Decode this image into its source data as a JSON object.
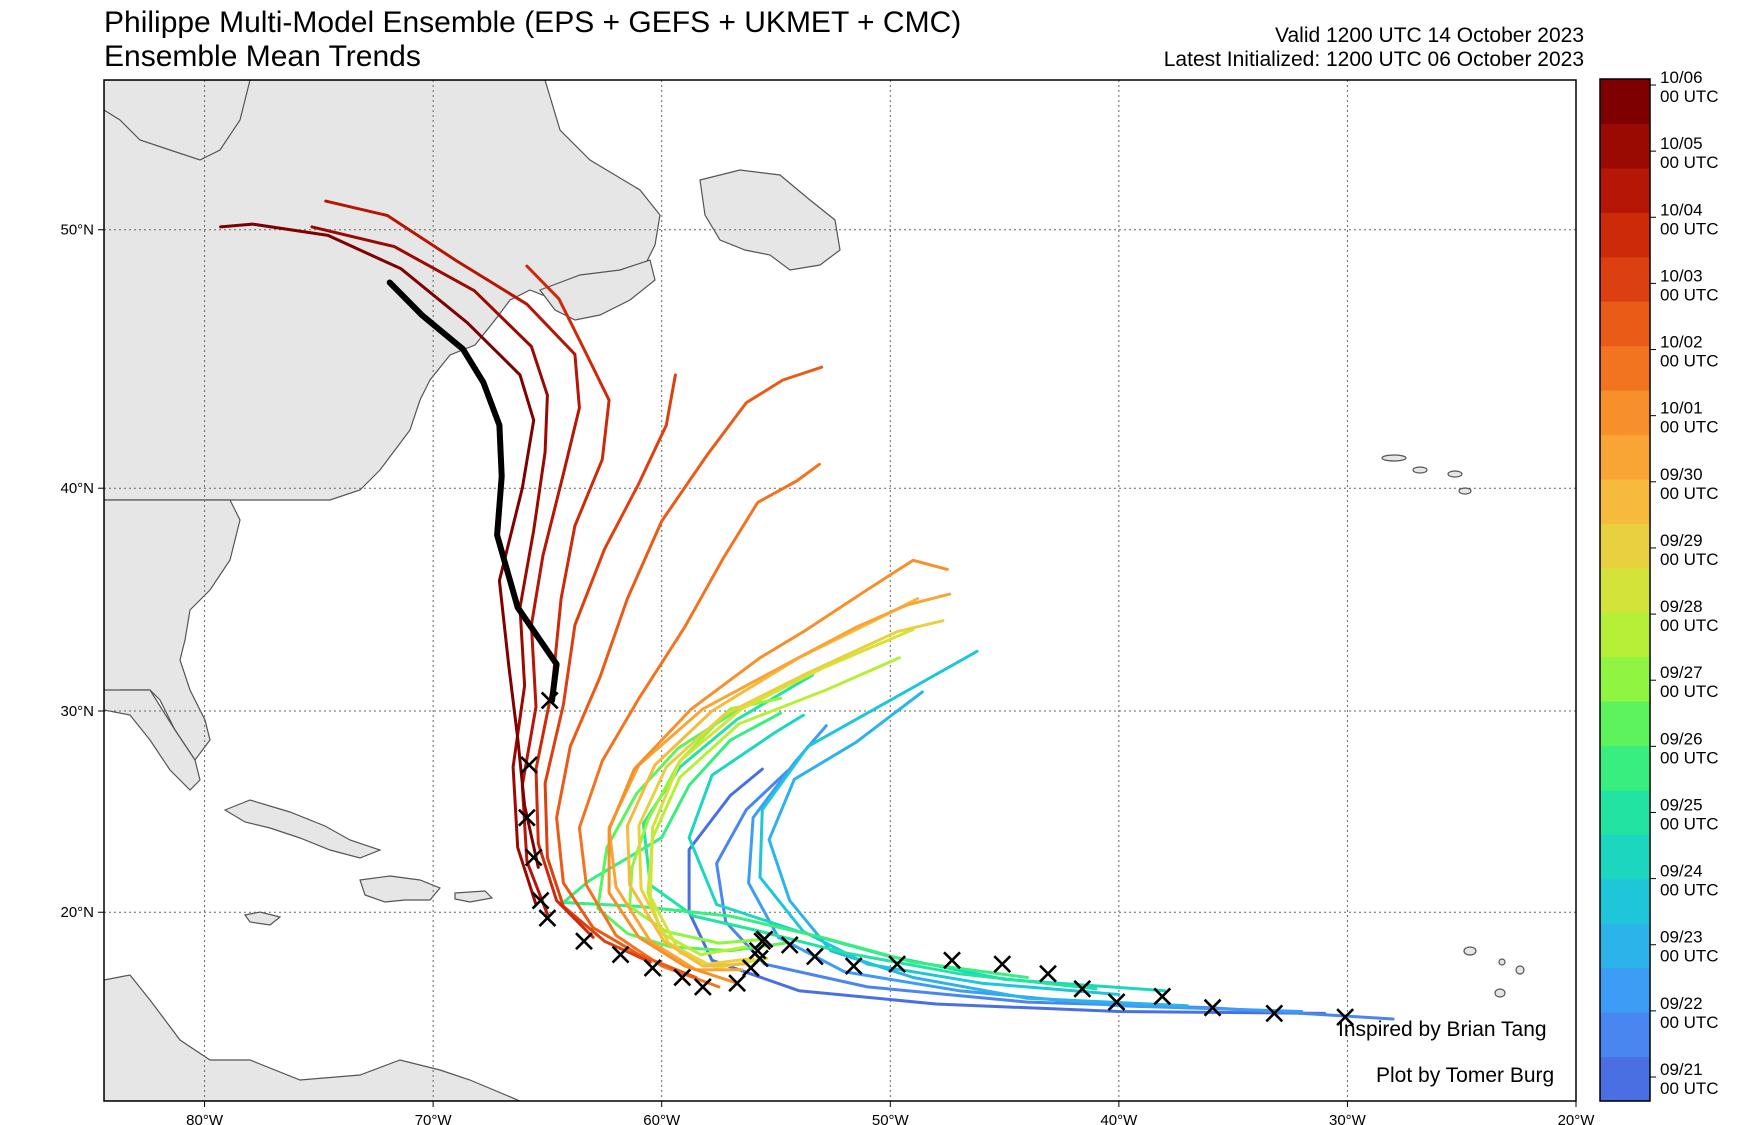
{
  "title": {
    "line1": "Philippe Multi-Model Ensemble (EPS + GEFS + UKMET + CMC)",
    "line2": "Ensemble Mean Trends",
    "valid": "Valid 1200 UTC 14 October 2023",
    "initialized": "Latest Initialized: 1200 UTC 06 October 2023"
  },
  "credits": {
    "inspired": "Inspired by Brian Tang",
    "plot_by": "Plot by Tomer Burg"
  },
  "map": {
    "lon_ticks": [
      {
        "value": -80,
        "label": "80°W"
      },
      {
        "value": -70,
        "label": "70°W"
      },
      {
        "value": -60,
        "label": "60°W"
      },
      {
        "value": -50,
        "label": "50°W"
      },
      {
        "value": -40,
        "label": "40°W"
      },
      {
        "value": -30,
        "label": "30°W"
      },
      {
        "value": -20,
        "label": "20°W"
      }
    ],
    "lat_ticks": [
      {
        "value": 20,
        "label": "20°N"
      },
      {
        "value": 30,
        "label": "30°N"
      },
      {
        "value": 40,
        "label": "40°N"
      },
      {
        "value": 50,
        "label": "50°N"
      }
    ],
    "lon_range": [
      -84.4,
      -20
    ],
    "lat_range": [
      10,
      55
    ],
    "grid": true,
    "land_color": "#e6e6e6",
    "border_color": "#555555",
    "mean_track_color": "#000000",
    "marker": "x-marker-icon"
  },
  "colorbar": {
    "colors": [
      "#4a6fe3",
      "#4a86f0",
      "#3d9cf5",
      "#2cb3e9",
      "#1fc6d9",
      "#1cd6c0",
      "#22e3a2",
      "#38ee7f",
      "#5df35c",
      "#8ff540",
      "#b6ef38",
      "#d4e33a",
      "#e9d03e",
      "#f6bb3d",
      "#f9a535",
      "#f78f2b",
      "#f27421",
      "#ea5b18",
      "#dd4010",
      "#cc2a09",
      "#b51605",
      "#9a0a02",
      "#7e0000"
    ],
    "labels": [
      {
        "date": "09/21",
        "time": "00 UTC"
      },
      {
        "date": "09/22",
        "time": "00 UTC"
      },
      {
        "date": "09/23",
        "time": "00 UTC"
      },
      {
        "date": "09/24",
        "time": "00 UTC"
      },
      {
        "date": "09/25",
        "time": "00 UTC"
      },
      {
        "date": "09/26",
        "time": "00 UTC"
      },
      {
        "date": "09/27",
        "time": "00 UTC"
      },
      {
        "date": "09/28",
        "time": "00 UTC"
      },
      {
        "date": "09/29",
        "time": "00 UTC"
      },
      {
        "date": "09/30",
        "time": "00 UTC"
      },
      {
        "date": "10/01",
        "time": "00 UTC"
      },
      {
        "date": "10/02",
        "time": "00 UTC"
      },
      {
        "date": "10/03",
        "time": "00 UTC"
      },
      {
        "date": "10/04",
        "time": "00 UTC"
      },
      {
        "date": "10/05",
        "time": "00 UTC"
      },
      {
        "date": "10/06",
        "time": "00 UTC"
      }
    ]
  },
  "tracks": [
    {
      "color": "#4a6fe3",
      "points": [
        [
          -31,
          14.7
        ],
        [
          -40,
          14.8
        ],
        [
          -48,
          15.2
        ],
        [
          -54,
          15.9
        ],
        [
          -57.8,
          17.5
        ],
        [
          -58.8,
          20
        ],
        [
          -58.8,
          23.2
        ],
        [
          -57,
          25.9
        ],
        [
          -55.6,
          27.2
        ]
      ]
    },
    {
      "color": "#4a86f0",
      "points": [
        [
          -28,
          14.4
        ],
        [
          -36,
          15
        ],
        [
          -44,
          15.3
        ],
        [
          -51,
          16.1
        ],
        [
          -55.5,
          17.3
        ],
        [
          -57.2,
          19.5
        ],
        [
          -57.6,
          22.5
        ],
        [
          -56.3,
          25.2
        ],
        [
          -54.5,
          27.1
        ]
      ]
    },
    {
      "color": "#3d9cf5",
      "points": [
        [
          -32,
          14.8
        ],
        [
          -40,
          15.1
        ],
        [
          -47,
          15.9
        ],
        [
          -52,
          16.9
        ],
        [
          -54.9,
          18.7
        ],
        [
          -56.2,
          21.5
        ],
        [
          -56,
          24.8
        ],
        [
          -54.2,
          27.5
        ],
        [
          -52.8,
          29.3
        ]
      ]
    },
    {
      "color": "#2cb3e9",
      "points": [
        [
          -37,
          15.1
        ],
        [
          -44,
          15.5
        ],
        [
          -49,
          16.6
        ],
        [
          -52.6,
          18
        ],
        [
          -54.4,
          20.6
        ],
        [
          -55.3,
          23.7
        ],
        [
          -54.2,
          26.7
        ],
        [
          -51.5,
          28.5
        ],
        [
          -48.6,
          30.9
        ]
      ]
    },
    {
      "color": "#1fc6d9",
      "points": [
        [
          -40,
          15.7
        ],
        [
          -46,
          16.3
        ],
        [
          -51,
          17.3
        ],
        [
          -53.8,
          19
        ],
        [
          -55.7,
          21.8
        ],
        [
          -55.6,
          25.2
        ],
        [
          -53.6,
          28.3
        ],
        [
          -49.2,
          31
        ],
        [
          -46.2,
          32.8
        ]
      ]
    },
    {
      "color": "#1cd6c0",
      "points": [
        [
          -38,
          15.9
        ],
        [
          -45,
          16.5
        ],
        [
          -50,
          17.7
        ],
        [
          -54,
          19
        ],
        [
          -57.6,
          20.4
        ],
        [
          -58.8,
          23.8
        ],
        [
          -57.8,
          26.9
        ],
        [
          -55,
          29
        ],
        [
          -53.8,
          29.8
        ]
      ]
    },
    {
      "color": "#22e3a2",
      "points": [
        [
          -41,
          16
        ],
        [
          -47,
          16.8
        ],
        [
          -52,
          17.9
        ],
        [
          -56,
          19.1
        ],
        [
          -58.6,
          19.8
        ],
        [
          -60.5,
          21.4
        ],
        [
          -60.8,
          24.5
        ],
        [
          -59.2,
          27.3
        ],
        [
          -56.7,
          29.6
        ],
        [
          -53.4,
          31.7
        ]
      ]
    },
    {
      "color": "#38ee7f",
      "points": [
        [
          -44,
          16.6
        ],
        [
          -49,
          17.4
        ],
        [
          -53,
          18.7
        ],
        [
          -57,
          19.8
        ],
        [
          -61,
          20.3
        ],
        [
          -64.3,
          20.5
        ],
        [
          -63.2,
          21.6
        ],
        [
          -60,
          23.8
        ],
        [
          -58.8,
          26.4
        ],
        [
          -57,
          28.6
        ],
        [
          -54.8,
          29.9
        ]
      ]
    },
    {
      "color": "#5df35c",
      "points": [
        [
          -54.6,
          18.4
        ],
        [
          -57,
          18
        ],
        [
          -59.6,
          18.2
        ],
        [
          -61.5,
          18.9
        ],
        [
          -62.8,
          20.2
        ],
        [
          -62.4,
          23.3
        ],
        [
          -61.1,
          26
        ],
        [
          -59.3,
          28.2
        ],
        [
          -56.6,
          30.1
        ]
      ]
    },
    {
      "color": "#8ff540",
      "points": [
        [
          -55.5,
          18.6
        ],
        [
          -57.5,
          18.4
        ],
        [
          -59.8,
          19
        ],
        [
          -61.4,
          20.3
        ],
        [
          -61.3,
          22.3
        ],
        [
          -60.6,
          24.7
        ],
        [
          -59.2,
          27.6
        ],
        [
          -57,
          30.1
        ],
        [
          -54.8,
          30.6
        ]
      ]
    },
    {
      "color": "#b6ef38",
      "points": [
        [
          -56.3,
          18.2
        ],
        [
          -58.3,
          17.8
        ],
        [
          -60,
          18.9
        ],
        [
          -60.6,
          21
        ],
        [
          -60.4,
          23.8
        ],
        [
          -59.2,
          26.8
        ],
        [
          -56.6,
          29.4
        ],
        [
          -52.8,
          31
        ],
        [
          -49.6,
          32.5
        ]
      ]
    },
    {
      "color": "#d4e33a",
      "points": [
        [
          -55.4,
          17.6
        ],
        [
          -57.6,
          17.1
        ],
        [
          -59.2,
          17.9
        ],
        [
          -60.5,
          20.8
        ],
        [
          -60.4,
          24.3
        ],
        [
          -59.2,
          27.6
        ],
        [
          -56.5,
          30.1
        ],
        [
          -53,
          32
        ],
        [
          -49,
          33.8
        ]
      ]
    },
    {
      "color": "#e9d03e",
      "points": [
        [
          -56,
          17.6
        ],
        [
          -58,
          17.3
        ],
        [
          -59.7,
          18.4
        ],
        [
          -60.9,
          21.2
        ],
        [
          -61,
          24.4
        ],
        [
          -59.8,
          27.3
        ],
        [
          -57.3,
          29.8
        ],
        [
          -53.6,
          31.8
        ],
        [
          -49.7,
          33.7
        ],
        [
          -47.7,
          34.2
        ]
      ]
    },
    {
      "color": "#f6bb3d",
      "points": [
        [
          -56.4,
          17.3
        ],
        [
          -58.2,
          17.2
        ],
        [
          -59.9,
          18.5
        ],
        [
          -61.4,
          21.4
        ],
        [
          -61.5,
          24.4
        ],
        [
          -60.3,
          27.4
        ],
        [
          -57.8,
          30
        ],
        [
          -54,
          32.5
        ],
        [
          -50.7,
          34.2
        ],
        [
          -48.8,
          35.2
        ]
      ]
    },
    {
      "color": "#f9a535",
      "points": [
        [
          -56.5,
          17
        ],
        [
          -58.5,
          17
        ],
        [
          -60.5,
          18.5
        ],
        [
          -62,
          21.3
        ],
        [
          -62.3,
          24.3
        ],
        [
          -61,
          27.4
        ],
        [
          -58.2,
          30.1
        ],
        [
          -54.2,
          32.4
        ],
        [
          -51.5,
          33.9
        ],
        [
          -49.3,
          34.9
        ],
        [
          -47.4,
          35.4
        ]
      ]
    },
    {
      "color": "#f78f2b",
      "points": [
        [
          -56.7,
          16.3
        ],
        [
          -59,
          17.2
        ],
        [
          -61,
          18.7
        ],
        [
          -62.3,
          21
        ],
        [
          -62.3,
          24.2
        ],
        [
          -61.2,
          27.2
        ],
        [
          -58.7,
          30.1
        ],
        [
          -55.7,
          32.5
        ],
        [
          -53.8,
          33.7
        ],
        [
          -51,
          35.6
        ],
        [
          -49,
          36.9
        ],
        [
          -47.5,
          36.5
        ]
      ]
    },
    {
      "color": "#f27421",
      "points": [
        [
          -57.5,
          16.1
        ],
        [
          -60,
          17.2
        ],
        [
          -62,
          18.8
        ],
        [
          -63.3,
          21.4
        ],
        [
          -63.6,
          24.3
        ],
        [
          -62.6,
          27.6
        ],
        [
          -61,
          30.6
        ],
        [
          -59,
          33.9
        ],
        [
          -57.3,
          37
        ],
        [
          -55.8,
          39.4
        ],
        [
          -54.1,
          40.3
        ],
        [
          -53.1,
          41
        ]
      ]
    },
    {
      "color": "#ea5b18",
      "points": [
        [
          -58.5,
          16.6
        ],
        [
          -61,
          17.8
        ],
        [
          -63,
          19.2
        ],
        [
          -64.3,
          21.5
        ],
        [
          -64.6,
          24.8
        ],
        [
          -64,
          28.3
        ],
        [
          -62.7,
          31.6
        ],
        [
          -61.5,
          35.2
        ],
        [
          -60,
          38.6
        ],
        [
          -58,
          41.4
        ],
        [
          -56.3,
          43.5
        ],
        [
          -54.7,
          44.4
        ],
        [
          -53,
          44.9
        ]
      ]
    },
    {
      "color": "#dd4010",
      "points": [
        [
          -60.5,
          17.4
        ],
        [
          -62.5,
          18.5
        ],
        [
          -64.3,
          20.3
        ],
        [
          -65,
          22.8
        ],
        [
          -65.1,
          26.5
        ],
        [
          -64.3,
          30.3
        ],
        [
          -63.8,
          34
        ],
        [
          -62.5,
          37.4
        ],
        [
          -61,
          40.2
        ],
        [
          -59.8,
          42.6
        ],
        [
          -59.4,
          44.6
        ]
      ]
    },
    {
      "color": "#cc2a09",
      "points": [
        [
          -63,
          18.7
        ],
        [
          -64.6,
          20.6
        ],
        [
          -65.4,
          23.5
        ],
        [
          -65.5,
          27.2
        ],
        [
          -64.8,
          31
        ],
        [
          -64.4,
          35.2
        ],
        [
          -63.8,
          38.4
        ],
        [
          -62.6,
          41.2
        ],
        [
          -62.3,
          43.6
        ],
        [
          -63.4,
          45.6
        ],
        [
          -64.5,
          47.5
        ],
        [
          -65.9,
          48.7
        ]
      ]
    },
    {
      "color": "#b51605",
      "points": [
        [
          -65,
          19.9
        ],
        [
          -65.9,
          22.6
        ],
        [
          -66.1,
          26.4
        ],
        [
          -65.5,
          30.2
        ],
        [
          -65.7,
          34
        ],
        [
          -65.2,
          37.1
        ],
        [
          -64.3,
          40.6
        ],
        [
          -63.6,
          43.3
        ],
        [
          -63.8,
          45.4
        ],
        [
          -65.9,
          47.3
        ],
        [
          -69,
          48.9
        ],
        [
          -72,
          50.5
        ],
        [
          -74.7,
          51
        ]
      ]
    },
    {
      "color": "#9a0a02",
      "points": [
        [
          -65.5,
          20.4
        ],
        [
          -66.3,
          23.3
        ],
        [
          -66.5,
          27.3
        ],
        [
          -66,
          31.2
        ],
        [
          -66.2,
          34.8
        ],
        [
          -65.6,
          38.2
        ],
        [
          -65.1,
          41.5
        ],
        [
          -65,
          43.8
        ],
        [
          -65.7,
          45.7
        ],
        [
          -68.2,
          47.8
        ],
        [
          -71.7,
          49.4
        ],
        [
          -75.3,
          50.1
        ]
      ]
    },
    {
      "color": "#7e0000",
      "points": [
        [
          -65.4,
          22.3
        ],
        [
          -66,
          25.4
        ],
        [
          -66.3,
          28.7
        ],
        [
          -66.7,
          32.2
        ],
        [
          -67.1,
          36
        ],
        [
          -66.1,
          40
        ],
        [
          -65.6,
          42.8
        ],
        [
          -66.2,
          44.6
        ],
        [
          -68.5,
          46.6
        ],
        [
          -71.4,
          48.6
        ],
        [
          -74.6,
          49.8
        ],
        [
          -77.9,
          50.2
        ],
        [
          -79.3,
          50.1
        ]
      ]
    },
    {
      "color": "#000000",
      "points": [
        [
          -64.8,
          30.5
        ],
        [
          -64.6,
          32.2
        ],
        [
          -66.3,
          34.8
        ],
        [
          -67.2,
          38
        ],
        [
          -67,
          40.5
        ],
        [
          -67.1,
          42.6
        ],
        [
          -67.8,
          44.3
        ],
        [
          -68.7,
          45.6
        ],
        [
          -70.5,
          46.9
        ],
        [
          -71.9,
          48.1
        ]
      ],
      "width": 6
    }
  ],
  "markers": [
    [
      -30.1,
      14.5
    ],
    [
      -33.2,
      14.7
    ],
    [
      -35.9,
      15
    ],
    [
      -38.1,
      15.6
    ],
    [
      -40.1,
      15.3
    ],
    [
      -41.6,
      16
    ],
    [
      -43.1,
      16.8
    ],
    [
      -45.1,
      17.3
    ],
    [
      -47.3,
      17.5
    ],
    [
      -49.7,
      17.3
    ],
    [
      -51.6,
      17.2
    ],
    [
      -53.3,
      17.7
    ],
    [
      -54.4,
      18.3
    ],
    [
      -55.5,
      18.6
    ],
    [
      -55.6,
      18.5
    ],
    [
      -55.8,
      18
    ],
    [
      -55.7,
      17.6
    ],
    [
      -56.1,
      17.1
    ],
    [
      -56.7,
      16.3
    ],
    [
      -58.2,
      16.1
    ],
    [
      -59.1,
      16.6
    ],
    [
      -60.4,
      17.1
    ],
    [
      -61.8,
      17.8
    ],
    [
      -63.4,
      18.5
    ],
    [
      -65,
      19.7
    ],
    [
      -65.3,
      20.6
    ],
    [
      -65.6,
      22.8
    ],
    [
      -65.9,
      24.8
    ],
    [
      -65.8,
      27.4
    ],
    [
      -64.9,
      30.5
    ]
  ]
}
